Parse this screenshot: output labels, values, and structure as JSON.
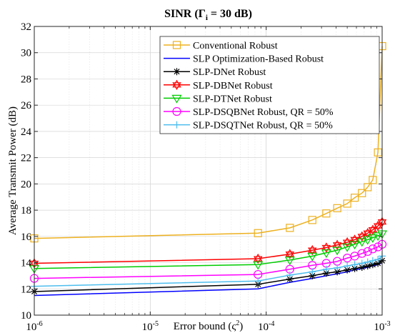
{
  "chart_data": {
    "type": "line",
    "title": {
      "prefix": "SINR (",
      "symbol": "Γ",
      "subscript": "i",
      "suffix": " = 30 dB)"
    },
    "xlabel": {
      "text": "Error bound (ς",
      "sup": "2",
      "end": ")"
    },
    "ylabel": "Average Transmit Power (dB)",
    "x_scale": "log",
    "xlim": [
      1e-06,
      0.001
    ],
    "ylim": [
      10,
      32
    ],
    "grid": true,
    "legend_position": "top-right",
    "x_ticks": [
      {
        "value": 1e-06,
        "base": "10",
        "exp": "-6"
      },
      {
        "value": 1e-05,
        "base": "10",
        "exp": "-5"
      },
      {
        "value": 0.0001,
        "base": "10",
        "exp": "-4"
      },
      {
        "value": 0.001,
        "base": "10",
        "exp": "-3"
      }
    ],
    "y_ticks": [
      10,
      12,
      14,
      16,
      18,
      20,
      22,
      24,
      26,
      28,
      30,
      32
    ],
    "x": [
      1e-06,
      8.5e-05,
      0.00016,
      0.00025,
      0.00033,
      0.00041,
      0.0005,
      0.00058,
      0.00067,
      0.00075,
      0.00083,
      0.00092,
      0.001
    ],
    "series": [
      {
        "name": "Conventional Robust",
        "color": "#EDB120",
        "marker": "square",
        "values": [
          15.85,
          16.25,
          16.65,
          17.25,
          17.75,
          18.15,
          18.5,
          18.95,
          19.3,
          19.75,
          20.3,
          22.4,
          30.5
        ]
      },
      {
        "name": "SLP Optimization-Based Robust",
        "color": "#0000FF",
        "marker": "none",
        "values": [
          11.5,
          12.0,
          12.5,
          12.8,
          13.0,
          13.15,
          13.3,
          13.45,
          13.55,
          13.65,
          13.75,
          13.85,
          14.0
        ]
      },
      {
        "name": "SLP-DNet Robust",
        "color": "#000000",
        "marker": "asterisk",
        "values": [
          11.8,
          12.35,
          12.75,
          13.0,
          13.2,
          13.3,
          13.45,
          13.55,
          13.65,
          13.75,
          13.85,
          13.95,
          14.15
        ]
      },
      {
        "name": "SLP-DBNet Robust",
        "color": "#FF0000",
        "marker": "hexagram",
        "values": [
          13.95,
          14.3,
          14.65,
          14.95,
          15.15,
          15.35,
          15.55,
          15.75,
          16.0,
          16.25,
          16.5,
          16.8,
          17.1
        ]
      },
      {
        "name": "SLP-DTNet Robust",
        "color": "#00CC00",
        "marker": "triangle-down",
        "values": [
          13.55,
          13.85,
          14.2,
          14.5,
          14.75,
          14.95,
          15.2,
          15.4,
          15.6,
          15.75,
          15.9,
          16.05,
          16.2
        ]
      },
      {
        "name": "SLP-DSQBNet Robust, QR = 50%",
        "color": "#FF00FF",
        "marker": "circle",
        "values": [
          12.8,
          13.1,
          13.5,
          13.8,
          13.95,
          14.1,
          14.35,
          14.5,
          14.7,
          14.85,
          15.05,
          15.2,
          15.4
        ]
      },
      {
        "name": "SLP-DSQTNet Robust, QR = 50%",
        "color": "#4DBEEE",
        "marker": "plus",
        "values": [
          12.2,
          12.6,
          13.05,
          13.3,
          13.5,
          13.6,
          13.75,
          13.85,
          13.95,
          14.05,
          14.15,
          14.25,
          14.5
        ]
      }
    ]
  }
}
